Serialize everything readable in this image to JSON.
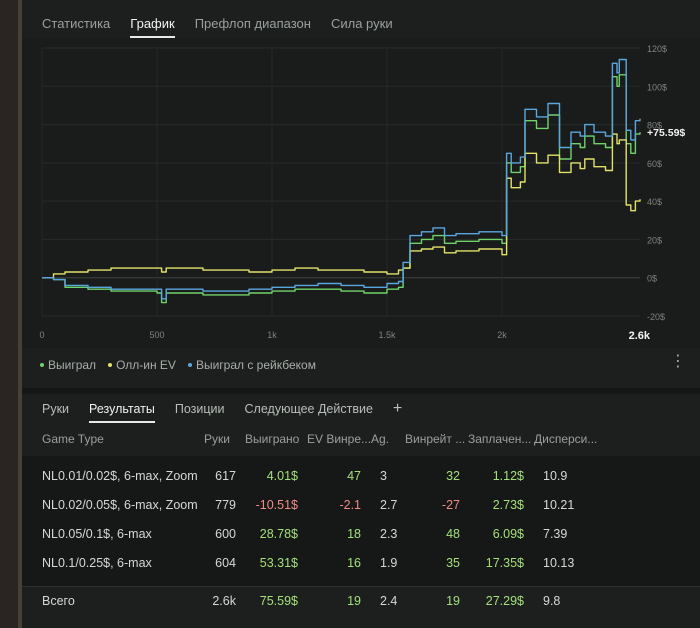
{
  "tabs": [
    {
      "label": "Статистика",
      "active": false
    },
    {
      "label": "График",
      "active": true
    },
    {
      "label": "Префлоп диапазон",
      "active": false
    },
    {
      "label": "Сила руки",
      "active": false
    }
  ],
  "chart_data": {
    "type": "line",
    "current_value_label": "+75.59$",
    "x_ticks": [
      "0",
      "500",
      "1k",
      "1.5k",
      "2k"
    ],
    "x_end_label": "2.6k",
    "y_ticks": [
      "120$",
      "100$",
      "80$",
      "60$",
      "40$",
      "20$",
      "0$",
      "-20$"
    ],
    "xlim": [
      0,
      2600
    ],
    "ylim": [
      -20,
      120
    ],
    "grid": true,
    "legend_position": "bottom-left",
    "x": [
      0,
      50,
      100,
      200,
      300,
      500,
      520,
      540,
      700,
      900,
      1000,
      1100,
      1200,
      1300,
      1400,
      1500,
      1550,
      1570,
      1600,
      1650,
      1700,
      1750,
      1800,
      1900,
      2000,
      2020,
      2040,
      2080,
      2100,
      2150,
      2200,
      2250,
      2300,
      2340,
      2360,
      2400,
      2450,
      2480,
      2500,
      2510,
      2540,
      2560,
      2580,
      2600
    ],
    "series": [
      {
        "name": "Выиграл",
        "color": "#6fd36a",
        "values": [
          0,
          -1,
          -5,
          -6,
          -7,
          -8,
          -13,
          -8,
          -9,
          -8,
          -7,
          -6,
          -6,
          -7,
          -8,
          -6,
          -5,
          5,
          18,
          20,
          22,
          18,
          19,
          20,
          18,
          60,
          55,
          58,
          82,
          78,
          85,
          62,
          70,
          68,
          74,
          70,
          68,
          105,
          100,
          106,
          70,
          65,
          75,
          76
        ]
      },
      {
        "name": "Олл-ин EV",
        "color": "#e2e26a",
        "values": [
          0,
          2,
          3,
          4,
          5,
          5,
          3,
          5,
          4,
          3,
          4,
          5,
          4,
          4,
          3,
          2,
          4,
          5,
          14,
          15,
          16,
          13,
          14,
          15,
          12,
          52,
          47,
          50,
          65,
          60,
          64,
          55,
          60,
          57,
          62,
          58,
          56,
          75,
          70,
          72,
          38,
          35,
          40,
          41
        ]
      },
      {
        "name": "Выиграл с рейкбеком",
        "color": "#5aa7e0",
        "values": [
          0,
          -1,
          -4,
          -5,
          -6,
          -6,
          -11,
          -6,
          -7,
          -6,
          -5,
          -4,
          -3,
          -4,
          -5,
          -3,
          -2,
          8,
          22,
          24,
          26,
          22,
          23,
          24,
          22,
          65,
          60,
          63,
          88,
          84,
          91,
          68,
          76,
          74,
          80,
          76,
          74,
          112,
          107,
          114,
          77,
          72,
          82,
          83
        ]
      }
    ]
  },
  "bottom_tabs": [
    {
      "label": "Руки",
      "active": false
    },
    {
      "label": "Результаты",
      "active": true
    },
    {
      "label": "Позиции",
      "active": false
    },
    {
      "label": "Следующее Действие",
      "active": false
    }
  ],
  "add_tab_label": "+",
  "table": {
    "headers": [
      "Game Type",
      "Руки",
      "Выиграно",
      "EV Винре...",
      "Ag.",
      "Винрейт ...",
      "Заплачен...",
      "Дисперси..."
    ],
    "rows": [
      {
        "game_type": "NL0.01/0.02$, 6-max, Zoom",
        "hands": "617",
        "won": "4.01$",
        "ev": "47",
        "ag": "3",
        "winrate": "32",
        "paid": "1.12$",
        "dispersion": "10.9",
        "won_sign": "pos",
        "ev_sign": "pos",
        "winrate_sign": "pos"
      },
      {
        "game_type": "NL0.02/0.05$, 6-max, Zoom",
        "hands": "779",
        "won": "-10.51$",
        "ev": "-2.1",
        "ag": "2.7",
        "winrate": "-27",
        "paid": "2.73$",
        "dispersion": "10.21",
        "won_sign": "neg",
        "ev_sign": "neg",
        "winrate_sign": "neg"
      },
      {
        "game_type": "NL0.05/0.1$, 6-max",
        "hands": "600",
        "won": "28.78$",
        "ev": "18",
        "ag": "2.3",
        "winrate": "48",
        "paid": "6.09$",
        "dispersion": "7.39",
        "won_sign": "pos",
        "ev_sign": "pos",
        "winrate_sign": "pos"
      },
      {
        "game_type": "NL0.1/0.25$, 6-max",
        "hands": "604",
        "won": "53.31$",
        "ev": "16",
        "ag": "1.9",
        "winrate": "35",
        "paid": "17.35$",
        "dispersion": "10.13",
        "won_sign": "pos",
        "ev_sign": "pos",
        "winrate_sign": "pos"
      }
    ],
    "total": {
      "game_type": "Всего",
      "hands": "2.6k",
      "won": "75.59$",
      "ev": "19",
      "ag": "2.4",
      "winrate": "19",
      "paid": "27.29$",
      "dispersion": "9.8",
      "won_sign": "pos",
      "ev_sign": "pos",
      "winrate_sign": "pos"
    }
  }
}
